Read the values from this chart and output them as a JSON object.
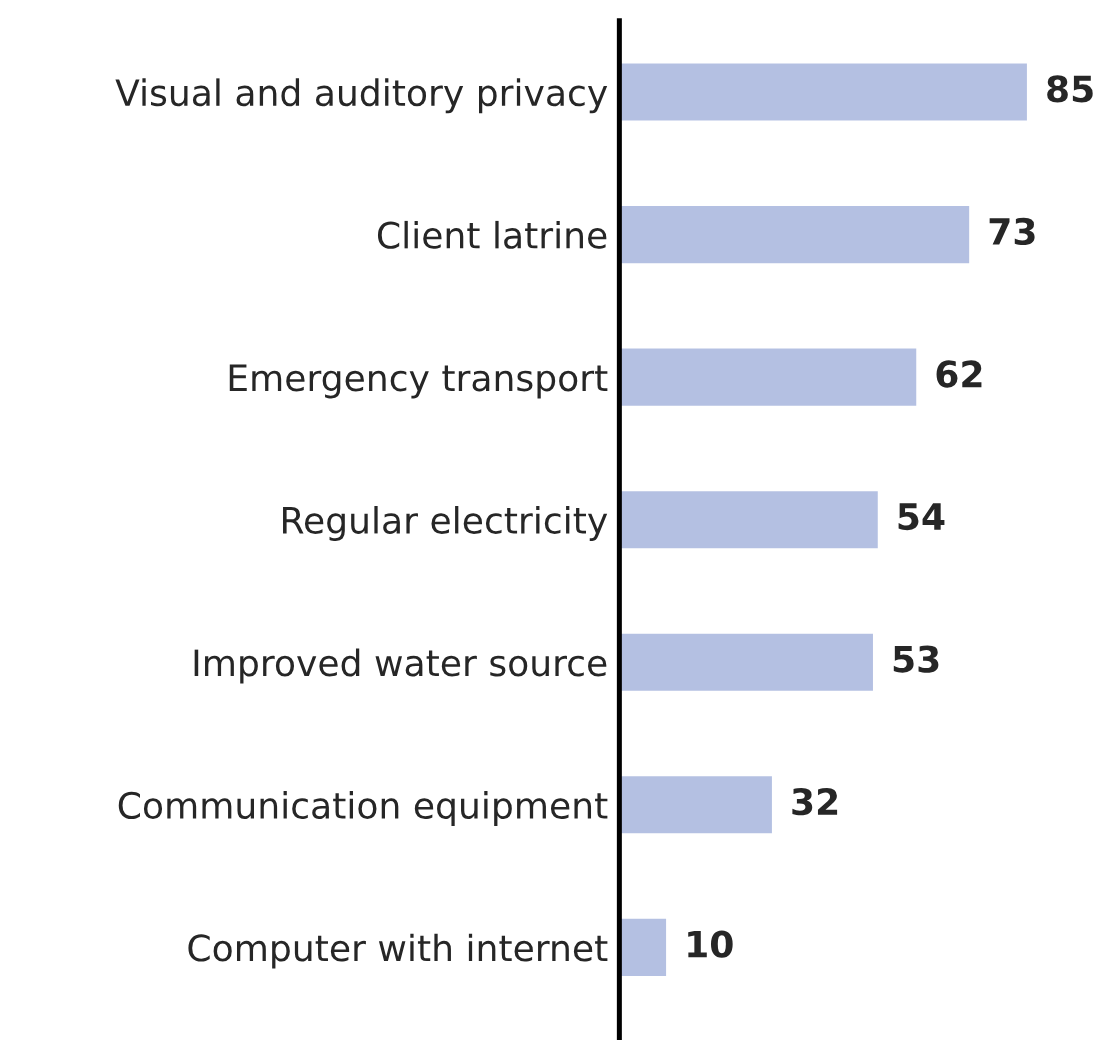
{
  "chart_data": {
    "type": "bar",
    "orientation": "horizontal",
    "categories": [
      "Visual and auditory privacy",
      "Client latrine",
      "Emergency transport",
      "Regular electricity",
      "Improved water source",
      "Communication equipment",
      "Computer with internet"
    ],
    "values": [
      85,
      73,
      62,
      54,
      53,
      32,
      10
    ],
    "color": "#b4c0e2",
    "data_labels": true,
    "grid": false,
    "legend": false
  }
}
